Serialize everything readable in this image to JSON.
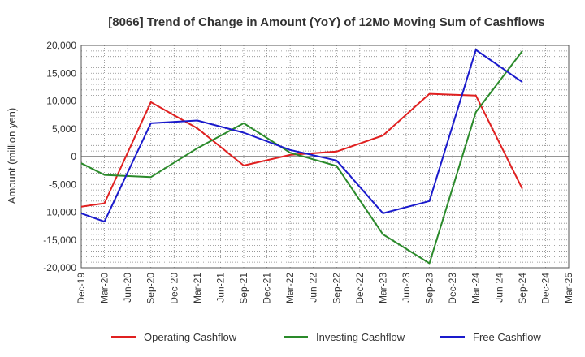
{
  "chart_data": {
    "type": "line",
    "title": "[8066]  Trend of Change in Amount (YoY) of 12Mo Moving Sum of Cashflows",
    "xlabel": "",
    "ylabel": "Amount (million yen)",
    "ylim": [
      -20000,
      20000
    ],
    "yticks": [
      20000,
      15000,
      10000,
      5000,
      0,
      -5000,
      -10000,
      -15000,
      -20000
    ],
    "ytick_labels": [
      "20,000",
      "15,000",
      "10,000",
      "5,000",
      "0",
      "-5,000",
      "-10,000",
      "-15,000",
      "-20,000"
    ],
    "categories": [
      "Dec-19",
      "Mar-20",
      "Jun-20",
      "Sep-20",
      "Dec-20",
      "Mar-21",
      "Jun-21",
      "Sep-21",
      "Dec-21",
      "Mar-22",
      "Jun-22",
      "Sep-22",
      "Dec-22",
      "Mar-23",
      "Jun-23",
      "Sep-23",
      "Dec-23",
      "Mar-24",
      "Jun-24",
      "Sep-24",
      "Dec-24",
      "Mar-25"
    ],
    "grid": true,
    "legend_position": "bottom",
    "series": [
      {
        "name": "Operating Cashflow",
        "color": "#e02020",
        "values": [
          -9000,
          -8400,
          null,
          9800,
          null,
          5100,
          null,
          -1600,
          null,
          300,
          null,
          900,
          null,
          3800,
          null,
          11300,
          null,
          11000,
          null,
          -5800,
          null,
          null
        ]
      },
      {
        "name": "Investing Cashflow",
        "color": "#2a8a2a",
        "values": [
          -1200,
          -3300,
          null,
          -3700,
          null,
          1500,
          null,
          6000,
          null,
          700,
          null,
          -1700,
          null,
          -14000,
          null,
          -19200,
          null,
          8000,
          null,
          19000,
          null,
          null
        ]
      },
      {
        "name": "Free Cashflow",
        "color": "#1a1acc",
        "values": [
          -10200,
          -11700,
          null,
          6000,
          null,
          6500,
          null,
          4300,
          null,
          1200,
          null,
          -700,
          null,
          -10200,
          null,
          -8000,
          null,
          19200,
          null,
          13400,
          null,
          null
        ]
      }
    ]
  }
}
